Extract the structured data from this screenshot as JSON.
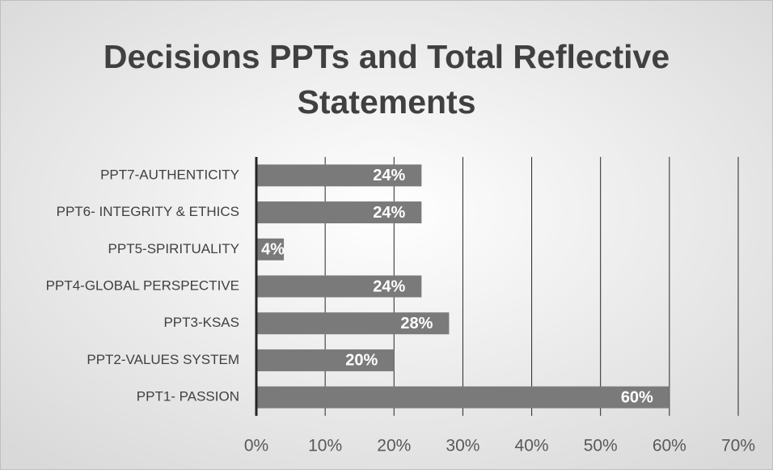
{
  "chart_data": {
    "type": "bar",
    "orientation": "horizontal",
    "title": "Decisions PPTs and Total Reflective Statements",
    "categories": [
      "PPT7-AUTHENTICITY",
      "PPT6- INTEGRITY & ETHICS",
      "PPT5-SPIRITUALITY",
      "PPT4-GLOBAL PERSPECTIVE",
      "PPT3-KSAS",
      "PPT2-VALUES SYSTEM",
      "PPT1- PASSION"
    ],
    "values": [
      24,
      24,
      4,
      24,
      28,
      20,
      60
    ],
    "value_labels": [
      "24%",
      "24%",
      "4%",
      "24%",
      "28%",
      "20%",
      "60%"
    ],
    "color": "#7a7a7a",
    "xlim": [
      0,
      70
    ],
    "xticks": [
      {
        "value": 0,
        "label": "0%"
      },
      {
        "value": 10,
        "label": "10%"
      },
      {
        "value": 20,
        "label": "20%"
      },
      {
        "value": 30,
        "label": "30%"
      },
      {
        "value": 40,
        "label": "40%"
      },
      {
        "value": 50,
        "label": "50%"
      },
      {
        "value": 60,
        "label": "60%"
      },
      {
        "value": 70,
        "label": "70%"
      }
    ],
    "grid": true
  }
}
